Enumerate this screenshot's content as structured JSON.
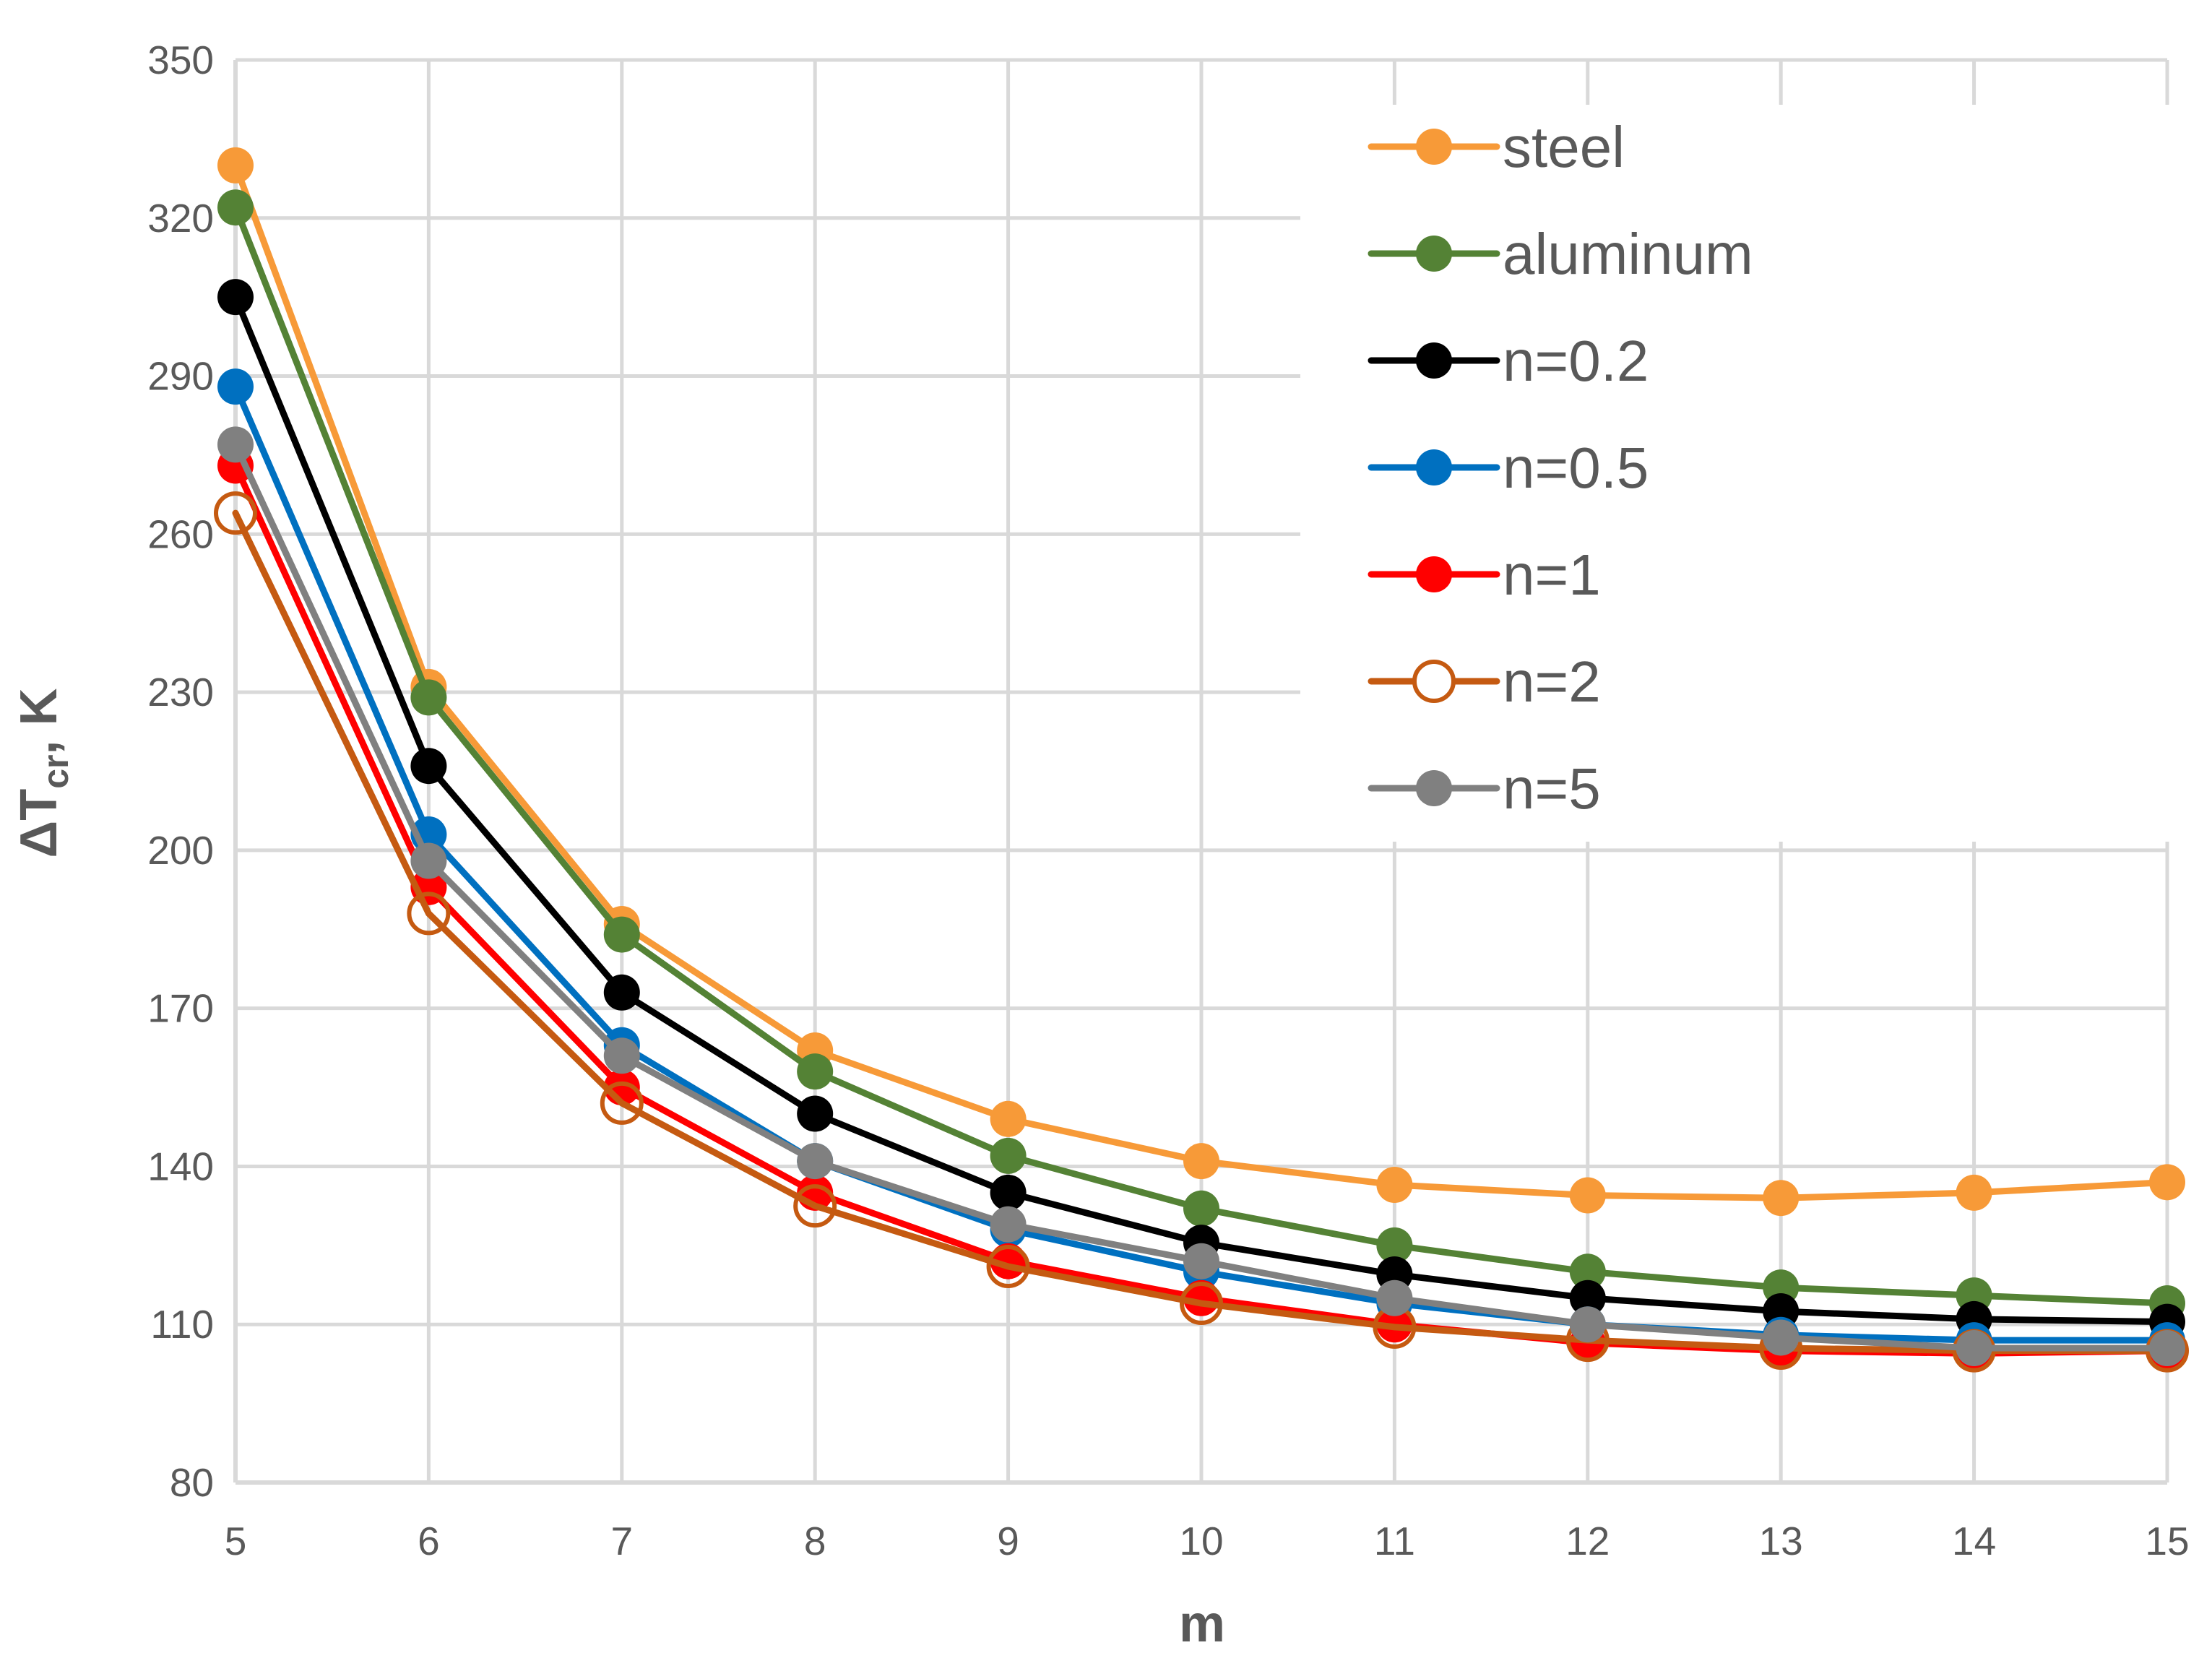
{
  "chart_data": {
    "type": "line",
    "title": "",
    "xlabel": "m",
    "ylabel": "ΔT",
    "ylabel_subscript": "cr",
    "ylabel_suffix": ", K",
    "x": [
      5,
      6,
      7,
      8,
      9,
      10,
      11,
      12,
      13,
      14,
      15
    ],
    "xlim": [
      5,
      15
    ],
    "ylim": [
      80,
      350
    ],
    "y_ticks": [
      80,
      110,
      140,
      170,
      200,
      230,
      260,
      290,
      320,
      350
    ],
    "grid": true,
    "legend_position": "top-right",
    "series": [
      {
        "name": "steel",
        "color": "#F79A38",
        "marker": "filled",
        "values": [
          330,
          231,
          186,
          162,
          149,
          141,
          136.5,
          134.5,
          134,
          135,
          137
        ]
      },
      {
        "name": "aluminum",
        "color": "#548235",
        "marker": "filled",
        "values": [
          322,
          229,
          184,
          158,
          142,
          132,
          125,
          120,
          117,
          115.5,
          114
        ]
      },
      {
        "name": "n=0.2",
        "color": "#000000",
        "marker": "filled",
        "values": [
          305,
          216,
          173,
          150,
          135,
          125.5,
          119.5,
          115,
          112.5,
          111,
          110.5
        ]
      },
      {
        "name": "n=0.5",
        "color": "#0070C0",
        "marker": "filled",
        "values": [
          288,
          203,
          163,
          141,
          128,
          120,
          114,
          110,
          108,
          107,
          107
        ]
      },
      {
        "name": "n=1",
        "color": "#FF0000",
        "marker": "filled",
        "values": [
          273,
          193,
          155,
          135,
          122,
          115,
          110,
          106.5,
          105,
          104.5,
          105
        ]
      },
      {
        "name": "n=2",
        "color": "#C55A11",
        "marker": "hollow",
        "values": [
          264,
          188,
          152,
          132.5,
          121,
          114,
          109.5,
          107,
          105.5,
          105,
          105
        ]
      },
      {
        "name": "n=5",
        "color": "#808080",
        "marker": "filled",
        "values": [
          277,
          198,
          161,
          141,
          129,
          122,
          115,
          110,
          107.5,
          105.5,
          105.5
        ]
      }
    ]
  }
}
